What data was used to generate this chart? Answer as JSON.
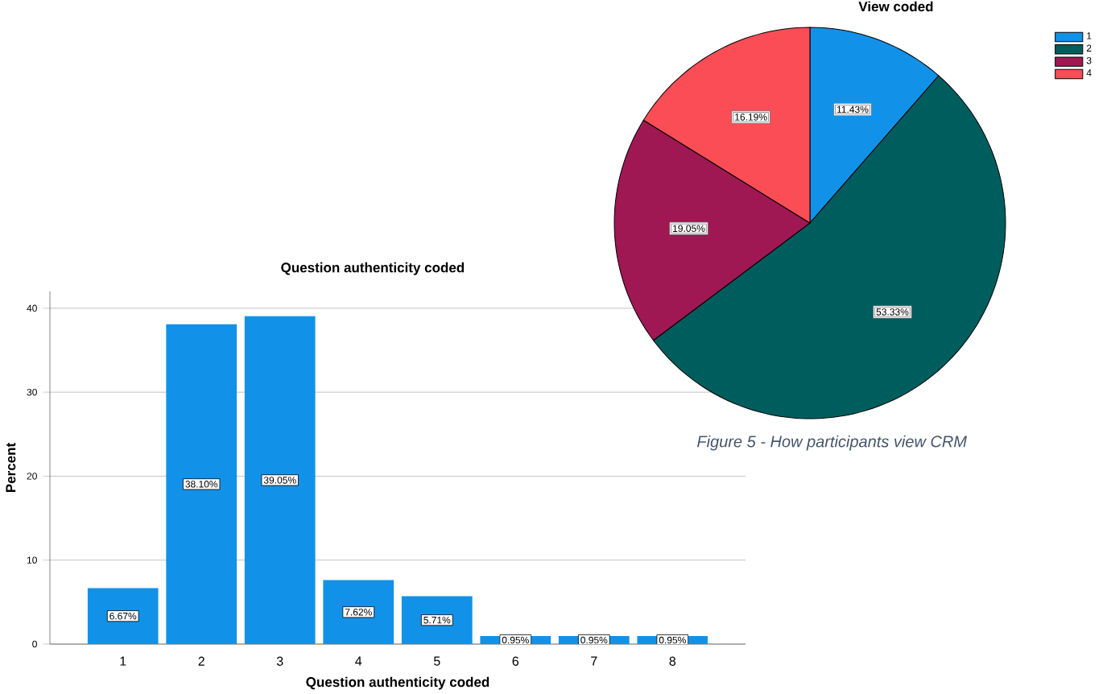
{
  "chart_data": [
    {
      "type": "bar",
      "title": "Question authenticity coded",
      "xlabel": "Question authenticity coded",
      "ylabel": "Percent",
      "categories": [
        "1",
        "2",
        "3",
        "4",
        "5",
        "6",
        "7",
        "8"
      ],
      "values": [
        6.67,
        38.1,
        39.05,
        7.62,
        5.71,
        0.95,
        0.95,
        0.95
      ],
      "value_labels": [
        "6.67%",
        "38.10%",
        "39.05%",
        "7.62%",
        "5.71%",
        "0.95%",
        "0.95%",
        "0.95%"
      ],
      "color": "#1192e8",
      "ylim": [
        0,
        42
      ],
      "yticks": [
        0,
        10,
        20,
        30,
        40
      ],
      "grid": "y"
    },
    {
      "type": "pie",
      "title": "View coded",
      "categories": [
        "1",
        "2",
        "3",
        "4"
      ],
      "values": [
        11.43,
        53.33,
        19.05,
        16.19
      ],
      "value_labels": [
        "11.43%",
        "53.33%",
        "19.05%",
        "16.19%"
      ],
      "colors": [
        "#1192e8",
        "#005d5d",
        "#9f1853",
        "#fa4d56"
      ],
      "legend": "top right",
      "annotations": [
        "Figure 5 - How participants view CRM"
      ]
    }
  ]
}
